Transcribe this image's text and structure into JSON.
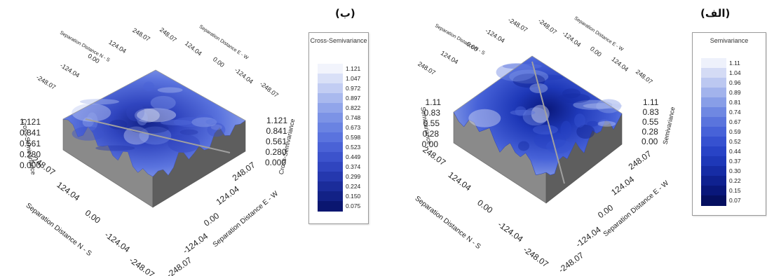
{
  "chart_data": [
    {
      "type": "heatmap",
      "subtype": "3d-surface",
      "panel_label": "(ب)",
      "legend_title": "Cross-Semivariance",
      "legend_values": [
        1.121,
        1.047,
        0.972,
        0.897,
        0.822,
        0.748,
        0.673,
        0.598,
        0.523,
        0.449,
        0.374,
        0.299,
        0.224,
        0.15,
        0.075
      ],
      "legend_labels": [
        "1.121",
        "1.047",
        "0.972",
        "0.897",
        "0.822",
        "0.748",
        "0.673",
        "0.598",
        "0.523",
        "0.449",
        "0.374",
        "0.299",
        "0.224",
        "0.150",
        "0.075"
      ],
      "z_axis_label": "Cross-Semivariance",
      "z_ticks": [
        "1.121",
        "0.841",
        "0.561",
        "0.280",
        "0.000"
      ],
      "x_axis_label": "Separation Distance N - S",
      "y_axis_label": "Separation Distance E - W",
      "distance_ticks": [
        "248.07",
        "124.04",
        "0.00",
        "-124.04",
        "-248.07"
      ],
      "back_x_ticks": [
        "-248.07",
        "-124.04",
        "0.00",
        "124.04",
        "248.07"
      ],
      "back_y_ticks": [
        "248.07",
        "124.04",
        "0.00",
        "-124.04",
        "-248.07"
      ],
      "front_x_ticks": [
        "248.07",
        "124.04",
        "0.00",
        "-124.04",
        "-248.07"
      ],
      "front_y_ticks": [
        "-248.07",
        "-124.04",
        "0.00",
        "124.04",
        "248.07"
      ],
      "xlim": [
        -248.07,
        248.07
      ],
      "ylim": [
        -248.07,
        248.07
      ],
      "zlim": [
        0,
        1.121
      ],
      "colors": [
        "#f2f4fc",
        "#d9e0f7",
        "#c2cdf3",
        "#a9b9ee",
        "#91a5ea",
        "#7c93e6",
        "#6a83e2",
        "#5a73de",
        "#4a62d6",
        "#3c53cc",
        "#3045bf",
        "#2538ae",
        "#1b2c9a",
        "#122186",
        "#0a1670"
      ]
    },
    {
      "type": "heatmap",
      "subtype": "3d-surface",
      "panel_label": "(الف)",
      "legend_title": "Semivariance",
      "legend_values": [
        1.11,
        1.04,
        0.96,
        0.89,
        0.81,
        0.74,
        0.67,
        0.59,
        0.52,
        0.44,
        0.37,
        0.3,
        0.22,
        0.15,
        0.07
      ],
      "legend_labels": [
        "1.11",
        "1.04",
        "0.96",
        "0.89",
        "0.81",
        "0.74",
        "0.67",
        "0.59",
        "0.52",
        "0.44",
        "0.37",
        "0.30",
        "0.22",
        "0.15",
        "0.07"
      ],
      "z_axis_label": "Semivariance",
      "z_ticks": [
        "1.11",
        "0.83",
        "0.55",
        "0.28",
        "0.00"
      ],
      "x_axis_label": "Separation Distance N - S",
      "y_axis_label": "Separation Distance E - W",
      "distance_ticks": [
        "248.07",
        "124.04",
        "0.00",
        "-124.04",
        "-248.07"
      ],
      "back_x_ticks": [
        "248.07",
        "124.04",
        "0.00",
        "-124.04",
        "-248.07"
      ],
      "back_y_ticks": [
        "-248.07",
        "-124.04",
        "0.00",
        "124.04",
        "248.07"
      ],
      "front_x_ticks": [
        "248.07",
        "124.04",
        "0.00",
        "-124.04",
        "-248.07"
      ],
      "front_y_ticks": [
        "-248.07",
        "-124.04",
        "0.00",
        "124.04",
        "248.07"
      ],
      "xlim": [
        -248.07,
        248.07
      ],
      "ylim": [
        -248.07,
        248.07
      ],
      "zlim": [
        0,
        1.11
      ],
      "colors": [
        "#eef1fb",
        "#d4dbf5",
        "#bcc8f1",
        "#a2b3ec",
        "#889ee7",
        "#6f88e2",
        "#5a74dd",
        "#4762d8",
        "#3651d0",
        "#2843c6",
        "#1e38b8",
        "#162ca5",
        "#0f2190",
        "#09177a",
        "#050f60"
      ]
    }
  ]
}
